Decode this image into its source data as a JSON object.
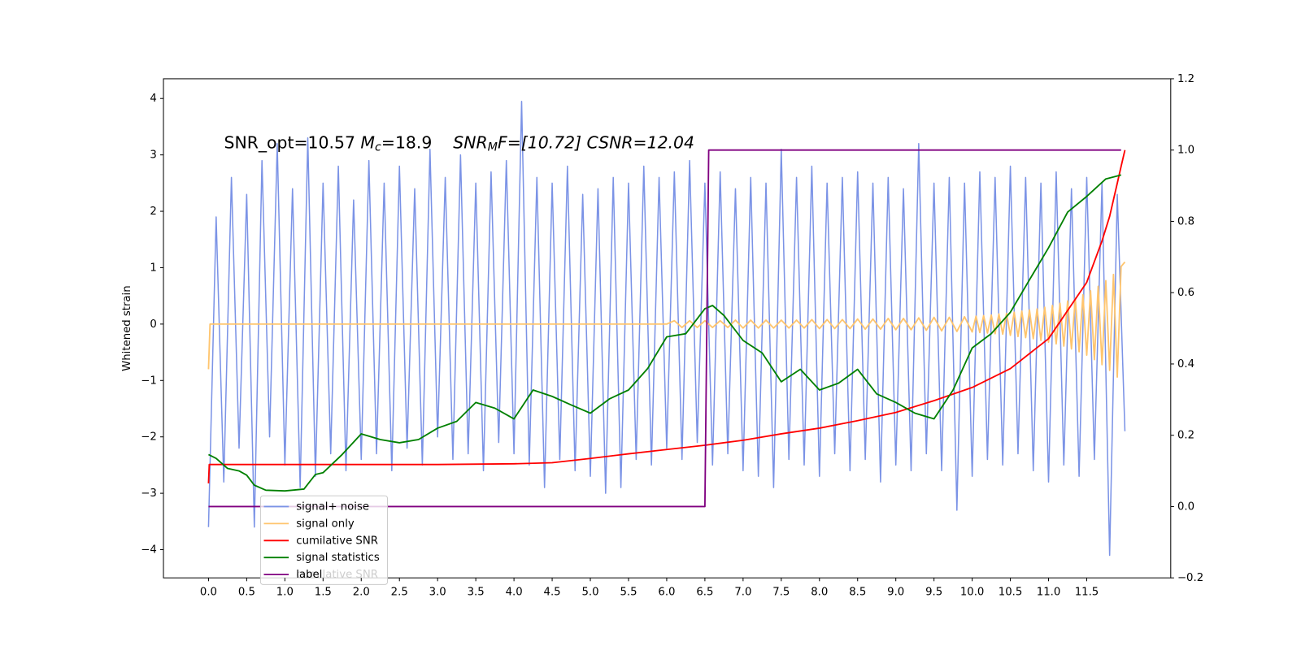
{
  "chart_data": {
    "type": "line",
    "ylabel": "Whitened strain",
    "annotation": [
      "SNR_opt=10.57 ",
      "M",
      "c",
      "=18.9    ",
      "SNR",
      "M",
      "F=[10.72] CSNR=12.04"
    ],
    "xlim": [
      -0.59,
      12.6
    ],
    "ylim": [
      -4.5,
      4.35
    ],
    "y2lim": [
      -0.2,
      1.2
    ],
    "xticks": [
      {
        "value": 0,
        "label": "0.0"
      },
      0.5,
      {
        "value": 1,
        "label": "1.0"
      },
      1.5,
      {
        "value": 2,
        "label": "2.0"
      },
      2.5,
      {
        "value": 3,
        "label": "3.0"
      },
      3.5,
      {
        "value": 4,
        "label": "4.0"
      },
      4.5,
      {
        "value": 5,
        "label": "5.0"
      },
      5.5,
      {
        "value": 6,
        "label": "6.0"
      },
      6.5,
      {
        "value": 7,
        "label": "7.0"
      },
      7.5,
      {
        "value": 8,
        "label": "8.0"
      },
      8.5,
      {
        "value": 9,
        "label": "9.0"
      },
      9.5,
      {
        "value": 10,
        "label": "10.0"
      },
      10.5,
      {
        "value": 11,
        "label": "11.0"
      },
      11.5
    ],
    "yticks": [
      {
        "value": -4,
        "label": "−4"
      },
      {
        "value": -3,
        "label": "−3"
      },
      {
        "value": -2,
        "label": "−2"
      },
      {
        "value": -1,
        "label": "−1"
      },
      0,
      1,
      2,
      3,
      4
    ],
    "y2ticks": [
      {
        "value": -0.2,
        "label": "−0.2"
      },
      {
        "value": 0,
        "label": "0.0"
      },
      0.2,
      0.4,
      0.6,
      0.8,
      {
        "value": 1,
        "label": "1.0"
      },
      1.2
    ],
    "legend_extra": "cumilative SNR",
    "series": [
      {
        "name": "signal+ noise",
        "color": "#7b93e6",
        "axis": "y",
        "x": [
          0,
          0.1,
          0.2,
          0.3,
          0.4,
          0.5,
          0.6,
          0.7,
          0.8,
          0.9,
          1,
          1.1,
          1.2,
          1.3,
          1.4,
          1.5,
          1.6,
          1.7,
          1.8,
          1.9,
          2,
          2.1,
          2.2,
          2.3,
          2.4,
          2.5,
          2.6,
          2.7,
          2.8,
          2.9,
          3,
          3.1,
          3.2,
          3.3,
          3.4,
          3.5,
          3.6,
          3.7,
          3.8,
          3.9,
          4,
          4.1,
          4.2,
          4.3,
          4.4,
          4.5,
          4.6,
          4.7,
          4.8,
          4.9,
          5,
          5.1,
          5.2,
          5.3,
          5.4,
          5.5,
          5.6,
          5.7,
          5.8,
          5.9,
          6,
          6.1,
          6.2,
          6.3,
          6.4,
          6.5,
          6.6,
          6.7,
          6.8,
          6.9,
          7,
          7.1,
          7.2,
          7.3,
          7.4,
          7.5,
          7.6,
          7.7,
          7.8,
          7.9,
          8,
          8.1,
          8.2,
          8.3,
          8.4,
          8.5,
          8.6,
          8.7,
          8.8,
          8.9,
          9,
          9.1,
          9.2,
          9.3,
          9.4,
          9.5,
          9.6,
          9.7,
          9.8,
          9.9,
          10,
          10.1,
          10.2,
          10.3,
          10.4,
          10.5,
          10.6,
          10.7,
          10.8,
          10.9,
          11,
          11.1,
          11.2,
          11.3,
          11.4,
          11.5,
          11.6,
          11.7,
          11.8,
          11.9,
          12
        ],
        "values": [
          -3.6,
          1.9,
          -2.8,
          2.6,
          -2.2,
          2.3,
          -3.6,
          2.9,
          -2.0,
          3.2,
          -2.5,
          2.4,
          -2.9,
          3.3,
          -2.7,
          2.5,
          -2.3,
          2.8,
          -2.6,
          2.2,
          -2.4,
          2.9,
          -2.3,
          2.5,
          -2.6,
          2.8,
          -2.2,
          2.4,
          -2.5,
          3.1,
          -2.0,
          2.6,
          -2.4,
          3.0,
          -2.3,
          2.5,
          -2.6,
          2.7,
          -2.1,
          2.9,
          -2.3,
          3.95,
          -2.5,
          2.6,
          -2.9,
          2.5,
          -2.4,
          2.8,
          -2.6,
          2.3,
          -2.7,
          2.4,
          -3.0,
          2.6,
          -2.9,
          2.5,
          -2.4,
          2.8,
          -2.5,
          2.6,
          -2.2,
          2.7,
          -2.4,
          2.9,
          -2.1,
          2.5,
          -2.5,
          2.7,
          -2.3,
          2.4,
          -2.6,
          2.6,
          -2.7,
          2.5,
          -2.9,
          3.1,
          -2.4,
          2.6,
          -2.5,
          2.8,
          -2.7,
          2.5,
          -2.3,
          2.6,
          -2.6,
          2.7,
          -2.4,
          2.5,
          -2.8,
          2.6,
          -2.5,
          2.4,
          -2.6,
          3.2,
          -2.3,
          2.5,
          -2.6,
          2.6,
          -3.3,
          2.5,
          -2.7,
          2.7,
          -2.4,
          2.6,
          -2.5,
          2.8,
          -2.3,
          2.6,
          -2.6,
          2.5,
          -2.8,
          2.7,
          -2.5,
          2.4,
          -2.7,
          2.6,
          -2.4,
          2.5,
          -4.1,
          2.3,
          -1.9
        ]
      },
      {
        "name": "signal only",
        "color": "#ffc56e",
        "axis": "y",
        "x": [
          0,
          0.02,
          6,
          6.1,
          6.2,
          6.3,
          6.4,
          6.5,
          6.6,
          6.7,
          6.8,
          6.9,
          7,
          7.1,
          7.2,
          7.3,
          7.4,
          7.5,
          7.6,
          7.7,
          7.8,
          7.9,
          8,
          8.1,
          8.2,
          8.3,
          8.4,
          8.5,
          8.6,
          8.7,
          8.8,
          8.9,
          9,
          9.1,
          9.2,
          9.3,
          9.4,
          9.5,
          9.6,
          9.7,
          9.8,
          9.9,
          10,
          10.05,
          10.1,
          10.15,
          10.2,
          10.25,
          10.3,
          10.35,
          10.4,
          10.45,
          10.5,
          10.55,
          10.6,
          10.65,
          10.7,
          10.75,
          10.8,
          10.85,
          10.9,
          10.95,
          11,
          11.05,
          11.1,
          11.15,
          11.2,
          11.25,
          11.3,
          11.35,
          11.4,
          11.45,
          11.5,
          11.55,
          11.6,
          11.65,
          11.7,
          11.75,
          11.8,
          11.85,
          11.9,
          11.95,
          12
        ],
        "values": [
          -0.8,
          0,
          0,
          0.06,
          -0.06,
          0.06,
          -0.06,
          0.06,
          -0.06,
          0.06,
          -0.06,
          0.07,
          -0.07,
          0.07,
          -0.07,
          0.07,
          -0.07,
          0.07,
          -0.07,
          0.07,
          -0.07,
          0.08,
          -0.08,
          0.08,
          -0.08,
          0.08,
          -0.08,
          0.09,
          -0.09,
          0.09,
          -0.09,
          0.1,
          -0.1,
          0.1,
          -0.1,
          0.11,
          -0.11,
          0.12,
          -0.12,
          0.12,
          -0.13,
          0.13,
          -0.14,
          0.14,
          -0.15,
          0.15,
          -0.16,
          0.16,
          -0.17,
          0.18,
          -0.18,
          0.19,
          -0.2,
          0.21,
          -0.22,
          0.23,
          -0.24,
          0.25,
          -0.26,
          0.27,
          -0.29,
          0.3,
          -0.32,
          0.33,
          -0.35,
          0.37,
          -0.39,
          0.41,
          -0.44,
          0.46,
          -0.49,
          0.52,
          -0.55,
          0.59,
          -0.63,
          0.67,
          -0.72,
          0.77,
          -0.82,
          0.88,
          -0.94,
          1.02,
          1.1
        ]
      },
      {
        "name": "cumilative SNR",
        "color": "#ff0000",
        "axis": "y2",
        "x": [
          0,
          0.01,
          1,
          2,
          3,
          4,
          4.5,
          5,
          5.5,
          6,
          6.5,
          7,
          7.5,
          8,
          8.5,
          9,
          9.5,
          10,
          10.5,
          11,
          11.5,
          11.7,
          11.8,
          11.9,
          11.95,
          12
        ],
        "values": [
          0.065,
          0.118,
          0.118,
          0.118,
          0.118,
          0.12,
          0.123,
          0.135,
          0.148,
          0.16,
          0.172,
          0.186,
          0.204,
          0.22,
          0.241,
          0.264,
          0.297,
          0.334,
          0.387,
          0.471,
          0.629,
          0.745,
          0.814,
          0.907,
          0.954,
          1.0
        ]
      },
      {
        "name": "signal statistics",
        "color": "#008000",
        "axis": "y2",
        "x": [
          0,
          0.1,
          0.25,
          0.4,
          0.5,
          0.6,
          0.75,
          1,
          1.25,
          1.4,
          1.5,
          1.75,
          2,
          2.25,
          2.5,
          2.75,
          3,
          3.25,
          3.5,
          3.75,
          4,
          4.25,
          4.5,
          4.75,
          5,
          5.25,
          5.5,
          5.75,
          6,
          6.25,
          6.5,
          6.6,
          6.75,
          7,
          7.25,
          7.5,
          7.75,
          8,
          8.25,
          8.5,
          8.75,
          9,
          9.25,
          9.5,
          9.75,
          10,
          10.25,
          10.5,
          10.75,
          11,
          11.25,
          11.5,
          11.75,
          11.95
        ],
        "values": [
          0.146,
          0.135,
          0.107,
          0.1,
          0.088,
          0.06,
          0.046,
          0.044,
          0.049,
          0.09,
          0.095,
          0.146,
          0.204,
          0.188,
          0.179,
          0.188,
          0.22,
          0.239,
          0.292,
          0.276,
          0.246,
          0.327,
          0.309,
          0.285,
          0.262,
          0.302,
          0.327,
          0.387,
          0.476,
          0.485,
          0.555,
          0.564,
          0.536,
          0.466,
          0.431,
          0.35,
          0.385,
          0.327,
          0.346,
          0.385,
          0.316,
          0.292,
          0.262,
          0.246,
          0.327,
          0.445,
          0.485,
          0.545,
          0.636,
          0.726,
          0.826,
          0.87,
          0.919,
          0.93
        ]
      },
      {
        "name": "label",
        "color": "#800080",
        "axis": "y2",
        "x": [
          0,
          6.5,
          6.55,
          11.95
        ],
        "values": [
          0,
          0,
          1,
          1
        ]
      }
    ]
  }
}
